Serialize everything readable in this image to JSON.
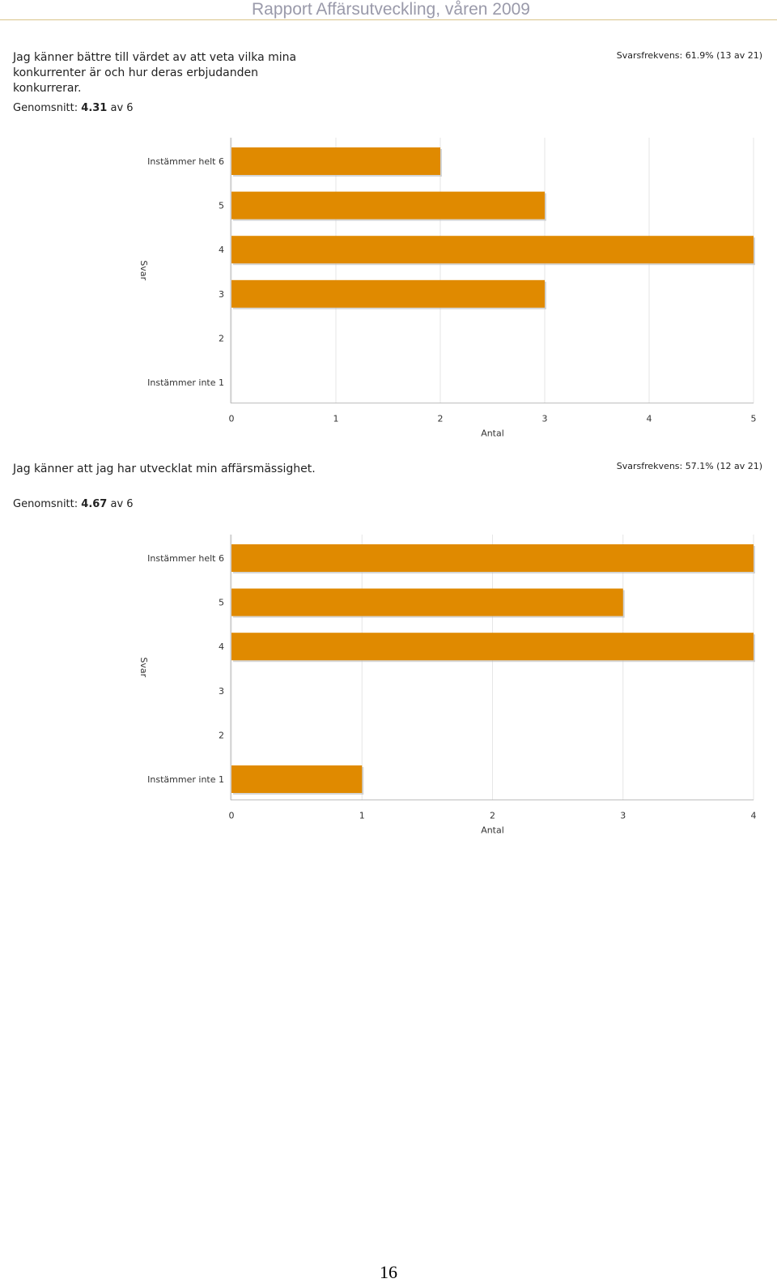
{
  "header": {
    "title": "Rapport Affärsutveckling, våren 2009"
  },
  "page_number": "16",
  "questions": [
    {
      "text": "Jag känner bättre till värdet av att veta vilka mina konkurrenter är och hur deras erbjudanden konkurrerar.",
      "average_label": "Genomsnitt:",
      "average_value": "4.31",
      "average_suffix": "av 6",
      "response_rate": "Svarsfrekvens: 61.9% (13 av 21)"
    },
    {
      "text": "Jag känner att jag har utvecklat min affärsmässighet.",
      "average_label": "Genomsnitt:",
      "average_value": "4.67",
      "average_suffix": "av 6",
      "response_rate": "Svarsfrekvens: 57.1% (12 av 21)"
    }
  ],
  "chart_data": [
    {
      "type": "bar",
      "orientation": "horizontal",
      "categories": [
        "Instämmer helt 6",
        "5",
        "4",
        "3",
        "2",
        "Instämmer inte 1"
      ],
      "values": [
        2,
        3,
        5,
        3,
        0,
        0
      ],
      "xlabel": "Antal",
      "ylabel": "Svar",
      "xlim": [
        0,
        5
      ],
      "xticks": [
        "0",
        "1",
        "2",
        "3",
        "4",
        "5"
      ],
      "grid": true,
      "bar_color": "#e08a00"
    },
    {
      "type": "bar",
      "orientation": "horizontal",
      "categories": [
        "Instämmer helt 6",
        "5",
        "4",
        "3",
        "2",
        "Instämmer inte 1"
      ],
      "values": [
        4,
        3,
        4,
        0,
        0,
        1
      ],
      "xlabel": "Antal",
      "ylabel": "Svar",
      "xlim": [
        0,
        4
      ],
      "xticks": [
        "0",
        "1",
        "2",
        "3",
        "4"
      ],
      "grid": true,
      "bar_color": "#e08a00"
    }
  ]
}
